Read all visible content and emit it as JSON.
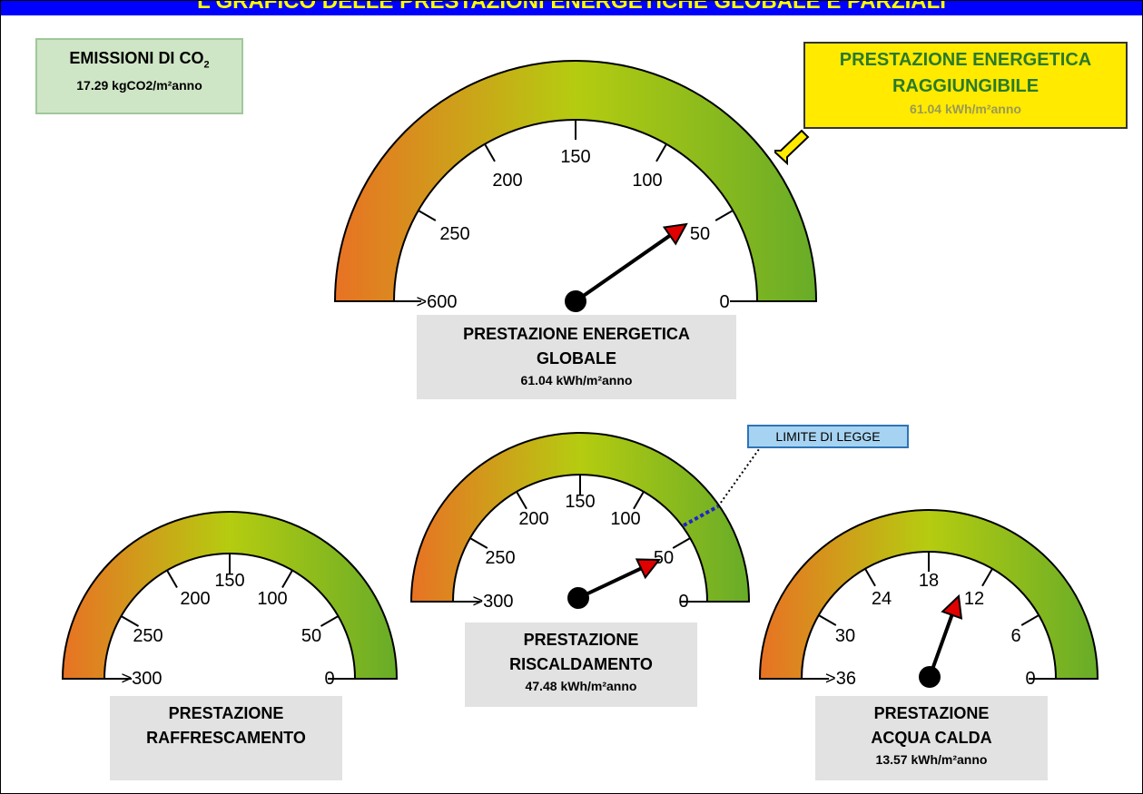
{
  "title": "L'GRAFICO DELLE PRESTAZIONI ENERGETICHE GLOBALE E PARZIALI",
  "co2": {
    "label": "EMISSIONI DI CO",
    "sub": "2",
    "value": "17.29 kgCO2/m²anno"
  },
  "target": {
    "title_line1": "PRESTAZIONE ENERGETICA",
    "title_line2": "RAGGIUNGIBILE",
    "value": "61.04 kWh/m²anno"
  },
  "limit_label": "LIMITE DI LEGGE",
  "colors": {
    "gauge_start": "#e87224",
    "gauge_mid": "#b5cc10",
    "gauge_end": "#68ac28",
    "needle_tip": "#e00000",
    "title_bar": "#0000ff",
    "title_text": "#ffff00",
    "target_box": "#ffea00",
    "co2_box": "#cfe6c6",
    "limit_box": "#a7d3f2"
  },
  "gauges": {
    "global": {
      "line1": "PRESTAZIONE ENERGETICA",
      "line2": "GLOBALE",
      "value": "61.04 kWh/m²anno"
    },
    "heating": {
      "line1": "PRESTAZIONE",
      "line2": "RISCALDAMENTO",
      "value": "47.48 kWh/m²anno"
    },
    "cooling": {
      "line1": "PRESTAZIONE",
      "line2": "RAFFRESCAMENTO",
      "value": ""
    },
    "water": {
      "line1": "PRESTAZIONE",
      "line2": "ACQUA CALDA",
      "value": "13.57 kWh/m²anno"
    }
  },
  "chart_data": [
    {
      "type": "gauge",
      "id": "global",
      "tick_labels": [
        ">600",
        "250",
        "200",
        "150",
        "100",
        "50",
        "0"
      ],
      "value": 61.04,
      "max_label": ">600",
      "target": 61.04
    },
    {
      "type": "gauge",
      "id": "heating",
      "tick_labels": [
        ">300",
        "250",
        "200",
        "150",
        "100",
        "50",
        "0"
      ],
      "value": 47.48,
      "limit_label": "LIMITE DI LEGGE"
    },
    {
      "type": "gauge",
      "id": "cooling",
      "tick_labels": [
        ">300",
        "250",
        "200",
        "150",
        "100",
        "50",
        "0"
      ],
      "value": null
    },
    {
      "type": "gauge",
      "id": "water",
      "tick_labels": [
        ">36",
        "30",
        "24",
        "18",
        "12",
        "6",
        "0"
      ],
      "value": 13.57
    }
  ]
}
